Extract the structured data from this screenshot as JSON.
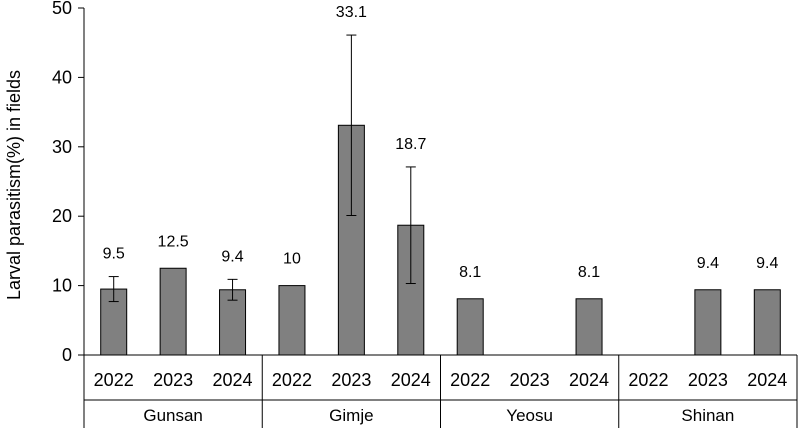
{
  "chart_data": {
    "type": "bar",
    "title": "",
    "xlabel": "",
    "ylabel": "Larval parasitism(%) in fields",
    "ylim": [
      0,
      50
    ],
    "yticks": [
      0,
      10,
      20,
      30,
      40,
      50
    ],
    "grid": false,
    "legend": "none",
    "bar_color": "#808080",
    "groups": [
      {
        "name": "Gunsan",
        "bars": [
          {
            "year": "2022",
            "value": 9.5,
            "label": "9.5",
            "err": 1.8
          },
          {
            "year": "2023",
            "value": 12.5,
            "label": "12.5",
            "err": null
          },
          {
            "year": "2024",
            "value": 9.4,
            "label": "9.4",
            "err": 1.5
          }
        ]
      },
      {
        "name": "Gimje",
        "bars": [
          {
            "year": "2022",
            "value": 10,
            "label": "10",
            "err": null
          },
          {
            "year": "2023",
            "value": 33.1,
            "label": "33.1",
            "err": 13.0
          },
          {
            "year": "2024",
            "value": 18.7,
            "label": "18.7",
            "err": 8.4
          }
        ]
      },
      {
        "name": "Yeosu",
        "bars": [
          {
            "year": "2022",
            "value": 8.1,
            "label": "8.1",
            "err": null
          },
          {
            "year": "2023",
            "value": null,
            "label": "",
            "err": null
          },
          {
            "year": "2024",
            "value": 8.1,
            "label": "8.1",
            "err": null
          }
        ]
      },
      {
        "name": "Shinan",
        "bars": [
          {
            "year": "2022",
            "value": null,
            "label": "",
            "err": null
          },
          {
            "year": "2023",
            "value": 9.4,
            "label": "9.4",
            "err": null
          },
          {
            "year": "2024",
            "value": 9.4,
            "label": "9.4",
            "err": null
          }
        ]
      }
    ]
  }
}
